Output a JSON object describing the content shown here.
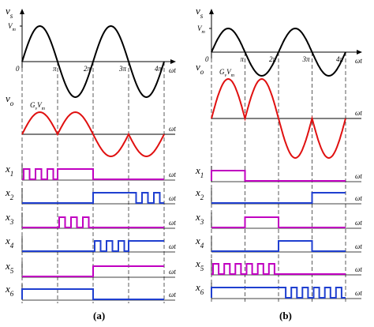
{
  "panels": [
    {
      "caption": "(a)",
      "vs_label": {
        "main": "v",
        "sub": "s"
      },
      "vm_label": {
        "main": "V",
        "sub": "m"
      },
      "origin": "0",
      "pi_labels": [
        "π",
        "2π",
        "3π",
        "4π"
      ],
      "axis_label": "ωt",
      "vo_label": {
        "main": "v",
        "sub": "o"
      },
      "gain_label": {
        "g": "G",
        "gsub": "v",
        "v": "V",
        "vsub": "m"
      },
      "switch_labels": [
        {
          "main": "x",
          "sub": "1"
        },
        {
          "main": "x",
          "sub": "2"
        },
        {
          "main": "x",
          "sub": "3"
        },
        {
          "main": "x",
          "sub": "4"
        },
        {
          "main": "x",
          "sub": "5"
        },
        {
          "main": "x",
          "sub": "6"
        }
      ]
    },
    {
      "caption": "(b)",
      "vs_label": {
        "main": "v",
        "sub": "s"
      },
      "vm_label": {
        "main": "V",
        "sub": "m"
      },
      "origin": "0",
      "pi_labels": [
        "π",
        "2π",
        "3π",
        "4π"
      ],
      "axis_label": "ωt",
      "vo_label": {
        "main": "v",
        "sub": "o"
      },
      "gain_label": {
        "g": "G",
        "gsub": "v",
        "v": "V",
        "vsub": "m"
      },
      "switch_labels": [
        {
          "main": "x",
          "sub": "1"
        },
        {
          "main": "x",
          "sub": "2"
        },
        {
          "main": "x",
          "sub": "3"
        },
        {
          "main": "x",
          "sub": "4"
        },
        {
          "main": "x",
          "sub": "5"
        },
        {
          "main": "x",
          "sub": "6"
        }
      ]
    }
  ]
}
